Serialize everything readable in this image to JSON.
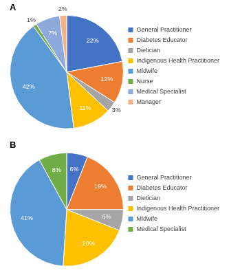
{
  "chart_data": [
    {
      "type": "pie",
      "title": "A",
      "categories": [
        "General Practitioner",
        "Diabetes Educator",
        "Dietician",
        "Indigenous Health Practitioner",
        "Midwife",
        "Nurse",
        "Medical Specialist",
        "Manager"
      ],
      "values": [
        22,
        12,
        3,
        11,
        42,
        1,
        7,
        2
      ],
      "value_labels": [
        "22%",
        "12%",
        "3%",
        "11%",
        "42%",
        "1%",
        "7%",
        "2%"
      ],
      "colors": [
        "#4472c4",
        "#ed7d31",
        "#a5a5a5",
        "#ffc000",
        "#5b9bd5",
        "#70ad47",
        "#8ea9db",
        "#f4b183"
      ],
      "legend": "right",
      "data_labels": true
    },
    {
      "type": "pie",
      "title": "B",
      "categories": [
        "General Practitioner",
        "Diabetes Educator",
        "Dietician",
        "Indigenous Health Practitioner",
        "Midwife",
        "Medical Specialist"
      ],
      "values": [
        6,
        19,
        6,
        20,
        41,
        8
      ],
      "value_labels": [
        "6%",
        "19%",
        "6%",
        "20%",
        "41%",
        "8%"
      ],
      "colors": [
        "#4472c4",
        "#ed7d31",
        "#a5a5a5",
        "#ffc000",
        "#5b9bd5",
        "#70ad47"
      ],
      "legend": "right",
      "data_labels": true
    }
  ]
}
